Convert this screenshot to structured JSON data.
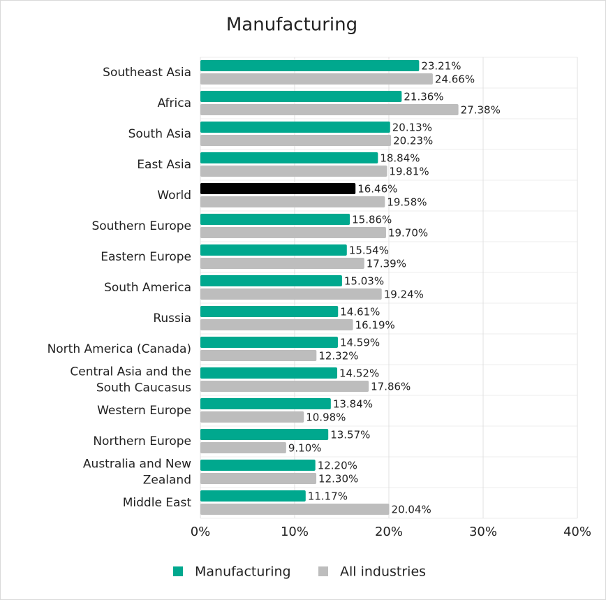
{
  "chart_data": {
    "type": "hbar",
    "title": "Manufacturing",
    "categories": [
      "Southeast Asia",
      "Africa",
      "South Asia",
      "East Asia",
      "World",
      "Southern Europe",
      "Eastern Europe",
      "South America",
      "Russia",
      "North America (Canada)",
      "Central Asia and the\nSouth Caucasus",
      "Western Europe",
      "Northern Europe",
      "Australia and New\nZealand",
      "Middle East"
    ],
    "series": [
      {
        "name": "Manufacturing",
        "color": "#00a88e",
        "point_colors": [
          "#00a88e",
          "#00a88e",
          "#00a88e",
          "#00a88e",
          "#000000",
          "#00a88e",
          "#00a88e",
          "#00a88e",
          "#00a88e",
          "#00a88e",
          "#00a88e",
          "#00a88e",
          "#00a88e",
          "#00a88e",
          "#00a88e"
        ],
        "values": [
          23.21,
          21.36,
          20.13,
          18.84,
          16.46,
          15.86,
          15.54,
          15.03,
          14.61,
          14.59,
          14.52,
          13.84,
          13.57,
          12.2,
          11.17
        ],
        "value_labels": [
          "23.21%",
          "21.36%",
          "20.13%",
          "18.84%",
          "16.46%",
          "15.86%",
          "15.54%",
          "15.03%",
          "14.61%",
          "14.59%",
          "14.52%",
          "13.84%",
          "13.57%",
          "12.20%",
          "11.17%"
        ]
      },
      {
        "name": "All industries",
        "color": "#bdbdbd",
        "values": [
          24.66,
          27.38,
          20.23,
          19.81,
          19.58,
          19.7,
          17.39,
          19.24,
          16.19,
          12.32,
          17.86,
          10.98,
          9.1,
          12.3,
          20.04
        ],
        "value_labels": [
          "24.66%",
          "27.38%",
          "20.23%",
          "19.81%",
          "19.58%",
          "19.70%",
          "17.39%",
          "19.24%",
          "16.19%",
          "12.32%",
          "17.86%",
          "10.98%",
          "9.10%",
          "12.30%",
          "20.04%"
        ]
      }
    ],
    "xlim": [
      0,
      40
    ],
    "xticks": [
      {
        "value": 0,
        "label": "0%"
      },
      {
        "value": 10,
        "label": "10%"
      },
      {
        "value": 20,
        "label": "20%"
      },
      {
        "value": 30,
        "label": "30%"
      },
      {
        "value": 40,
        "label": "40%"
      }
    ],
    "grid": true,
    "legend": "bottom"
  }
}
